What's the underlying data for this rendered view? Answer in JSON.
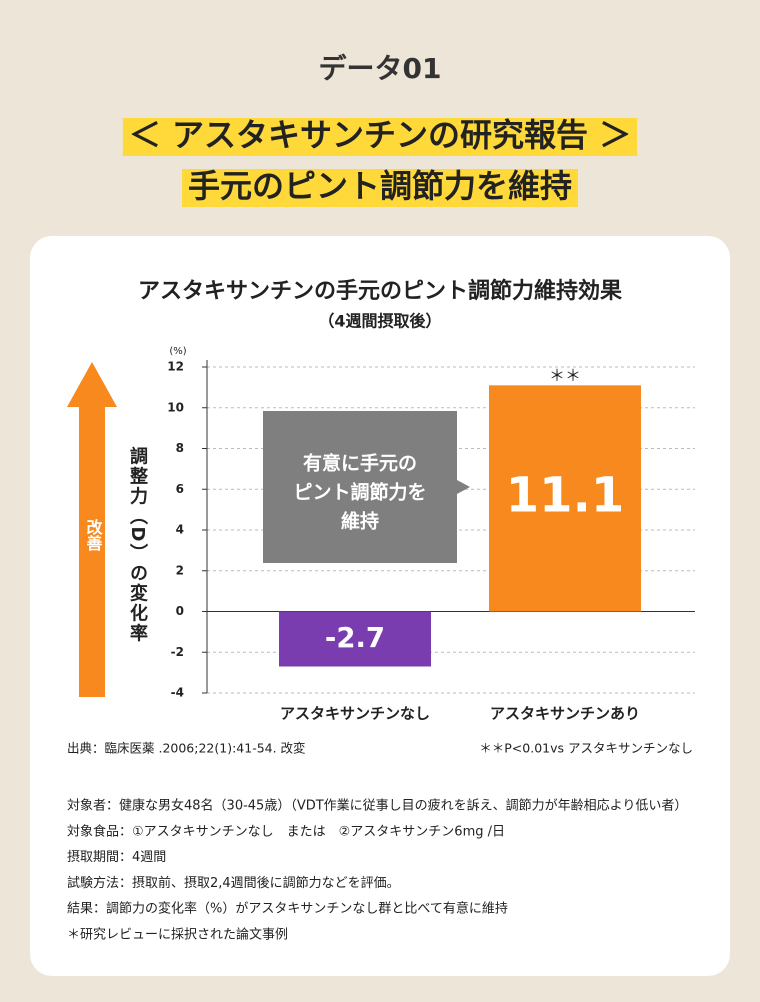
{
  "header": {
    "label": "データ01",
    "title_lines": [
      "＜ アスタキサンチンの研究報告 ＞",
      "手元のピント調節力を維持"
    ]
  },
  "chart_data": {
    "type": "bar",
    "title": "アスタキサンチンの手元のピント調節力維持効果",
    "subtitle": "（4週間摂取後）",
    "y_unit": "(%)",
    "y_label": "調整力（D）の変化率",
    "arrow_label": "改善",
    "categories": [
      "アスタキサンチンなし",
      "アスタキサンチンあり"
    ],
    "values": [
      -2.7,
      11.1
    ],
    "colors": [
      "#7a3db0",
      "#f7891f"
    ],
    "ylim": [
      -4,
      12
    ],
    "yticks": [
      -4,
      -2,
      0,
      2,
      4,
      6,
      8,
      10,
      12
    ],
    "grid": true,
    "annotation": [
      "有意に手元の",
      "ピント調節力を",
      "維持"
    ],
    "significance": "＊＊",
    "source": "出典：臨床医薬 .2006;22(1):41-54. 改変",
    "significance_note": "＊＊P<0.01vs アスタキサンチンなし"
  },
  "notes": [
    "対象者：健康な男女48名（30-45歳）（VDT作業に従事し目の疲れを訴え、調節力が年齢相応より低い者）",
    "対象食品：①アスタキサンチンなし　または　②アスタキサンチン6mg /日",
    "摂取期間：4週間",
    "試験方法：摂取前、摂取2,4週間後に調節力などを評価。",
    "結果：調節力の変化率（%）がアスタキサンチンなし群と比べて有意に維持",
    "＊研究レビューに採択された論文事例"
  ]
}
